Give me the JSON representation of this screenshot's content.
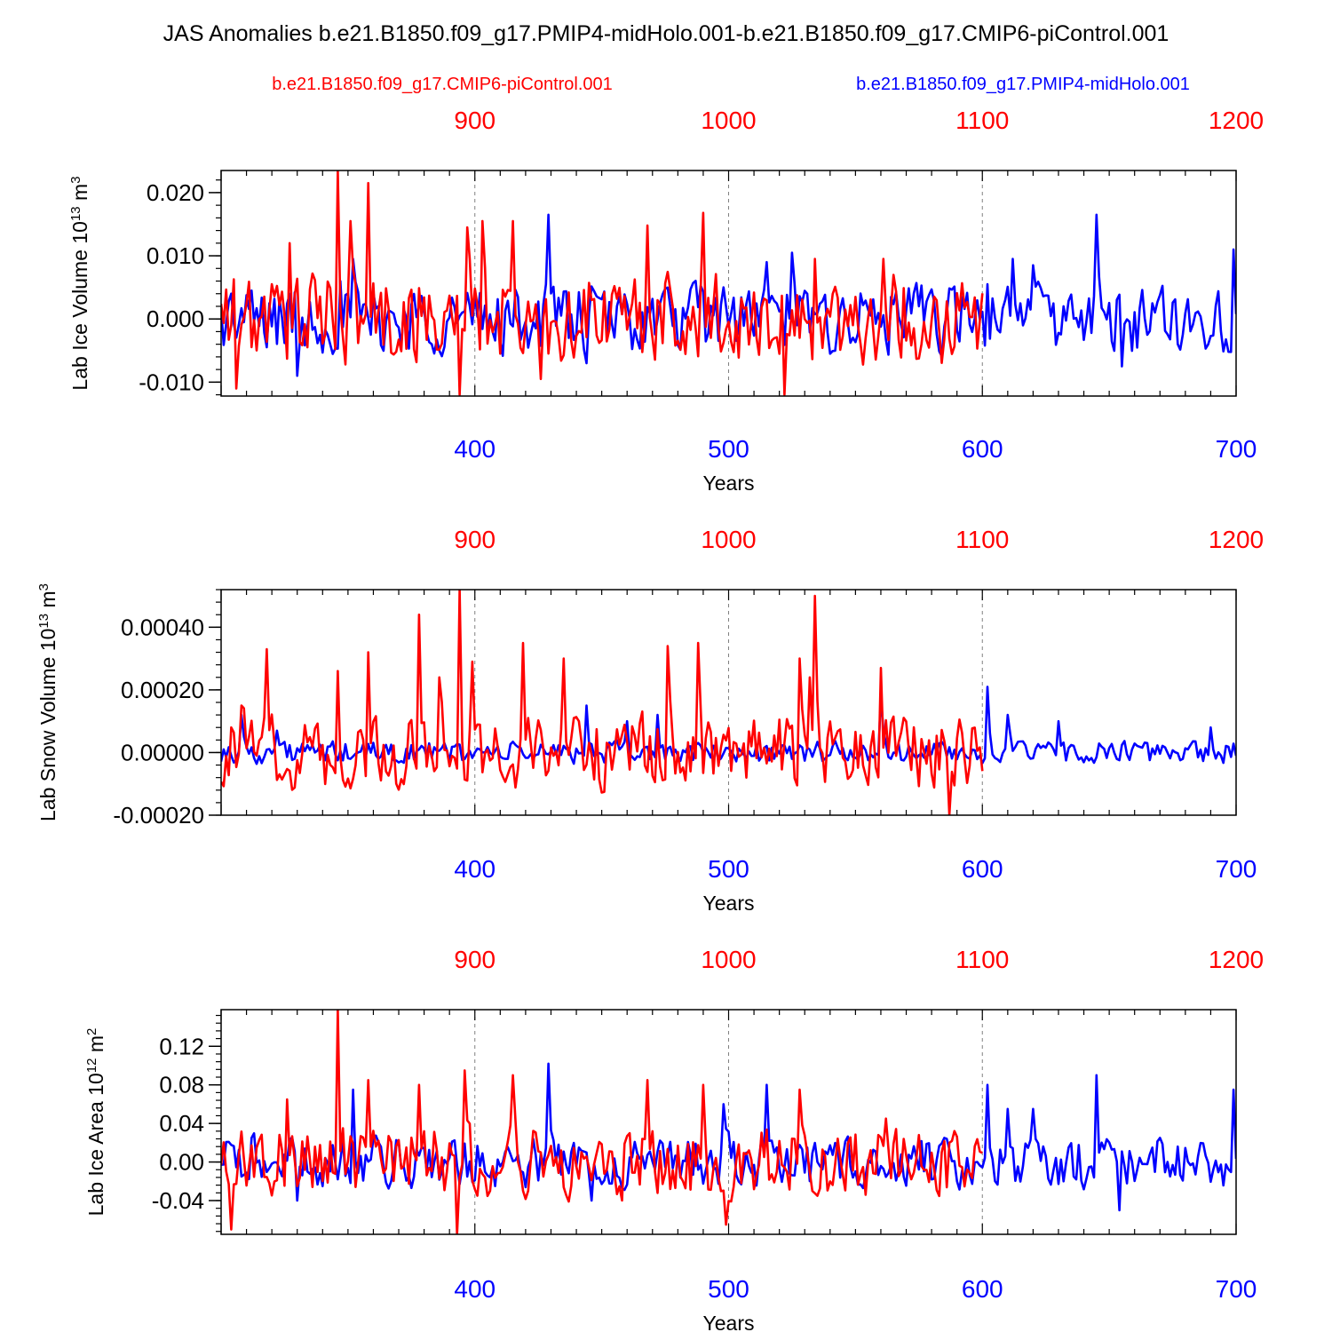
{
  "title": "JAS Anomalies b.e21.B1850.f09_g17.PMIP4-midHolo.001-b.e21.B1850.f09_g17.CMIP6-piControl.001",
  "legend": {
    "left": "b.e21.B1850.f09_g17.CMIP6-piControl.001",
    "right": "b.e21.B1850.f09_g17.PMIP4-midHolo.001"
  },
  "colors": {
    "control": "#ff0000",
    "midholo": "#0000ff",
    "axis": "#000000",
    "grid": "#808080"
  },
  "chart_data": [
    {
      "type": "line",
      "ylabel_main": "Lab Ice Volume 10",
      "ylabel_exp": "13",
      "ylabel_unit": " m",
      "ylabel_unit_exp": "3",
      "xlabel": "Years",
      "bottom_xlim": [
        300,
        700
      ],
      "bottom_ticks": [
        400,
        500,
        600,
        700
      ],
      "top_ticks": [
        900,
        1000,
        1100,
        1200
      ],
      "ylim": [
        -0.0122,
        0.0235
      ],
      "yticks": [
        -0.01,
        0.0,
        0.01,
        0.02
      ],
      "ytick_labels": [
        "-0.010",
        "0.000",
        "0.010",
        "0.020"
      ],
      "yminor_step": 0.002,
      "series": [
        {
          "name": "b.e21.B1850.f09_g17.PMIP4-midHolo.001",
          "axis": "bottom",
          "x_start": 300,
          "amp": 0.0042,
          "spikes": [
            [
              330,
              -0.009
            ],
            [
              347,
              0.006
            ],
            [
              352,
              0.0095
            ],
            [
              429,
              0.0165
            ],
            [
              444,
              -0.007
            ],
            [
              498,
              0.005
            ],
            [
              515,
              0.009
            ],
            [
              525,
              0.0105
            ],
            [
              602,
              0.0055
            ],
            [
              612,
              0.0095
            ],
            [
              620,
              0.0085
            ],
            [
              645,
              0.0165
            ],
            [
              655,
              -0.0075
            ],
            [
              699,
              0.011
            ]
          ]
        },
        {
          "name": "b.e21.B1850.f09_g17.CMIP6-piControl.001",
          "axis": "top",
          "x_start": 800,
          "x_end": 1100,
          "amp": 0.0055,
          "spikes": [
            [
              806,
              -0.011
            ],
            [
              827,
              0.012
            ],
            [
              846,
              0.0235
            ],
            [
              851,
              0.0155
            ],
            [
              858,
              0.0215
            ],
            [
              894,
              -0.012
            ],
            [
              897,
              0.0145
            ],
            [
              903,
              0.0155
            ],
            [
              915,
              0.0155
            ],
            [
              926,
              -0.0095
            ],
            [
              968,
              0.0148
            ],
            [
              990,
              0.0168
            ],
            [
              1022,
              -0.012
            ],
            [
              1034,
              0.0095
            ],
            [
              1061,
              0.0095
            ]
          ]
        }
      ]
    },
    {
      "type": "line",
      "ylabel_main": "Lab Snow Volume 10",
      "ylabel_exp": "13",
      "ylabel_unit": " m",
      "ylabel_unit_exp": "3",
      "xlabel": "Years",
      "bottom_xlim": [
        300,
        700
      ],
      "bottom_ticks": [
        400,
        500,
        600,
        700
      ],
      "top_ticks": [
        900,
        1000,
        1100,
        1200
      ],
      "ylim": [
        -0.0002,
        0.00052
      ],
      "yticks": [
        -0.0002,
        0.0,
        0.0002,
        0.0004
      ],
      "ytick_labels": [
        "-0.00020",
        "0.00000",
        "0.00020",
        "0.00040"
      ],
      "yminor_step": 4e-05,
      "series": [
        {
          "name": "b.e21.B1850.f09_g17.PMIP4-midHolo.001",
          "axis": "bottom",
          "x_start": 300,
          "amp": 3e-05,
          "spikes": [
            [
              308,
              0.00012
            ],
            [
              322,
              7e-05
            ],
            [
              444,
              0.00015
            ],
            [
              460,
              0.0001
            ],
            [
              472,
              0.00012
            ],
            [
              560,
              0.00018
            ],
            [
              602,
              0.00021
            ],
            [
              610,
              0.00012
            ],
            [
              630,
              0.0001
            ],
            [
              690,
              8e-05
            ]
          ]
        },
        {
          "name": "b.e21.B1850.f09_g17.CMIP6-piControl.001",
          "axis": "top",
          "x_start": 800,
          "x_end": 1100,
          "amp": 9e-05,
          "spikes": [
            [
              808,
              0.00015
            ],
            [
              818,
              0.00033
            ],
            [
              846,
              0.00026
            ],
            [
              858,
              0.00032
            ],
            [
              878,
              0.00044
            ],
            [
              886,
              0.00024
            ],
            [
              894,
              0.00052
            ],
            [
              899,
              0.00029
            ],
            [
              919,
              0.00035
            ],
            [
              935,
              0.0003
            ],
            [
              976,
              0.00034
            ],
            [
              988,
              0.00035
            ],
            [
              1028,
              0.0003
            ],
            [
              1032,
              0.00024
            ],
            [
              1034,
              0.0005
            ],
            [
              1060,
              0.00027
            ],
            [
              1087,
              -0.0002
            ]
          ]
        }
      ]
    },
    {
      "type": "line",
      "ylabel_main": "Lab Ice Area 10",
      "ylabel_exp": "12",
      "ylabel_unit": " m",
      "ylabel_unit_exp": "2",
      "xlabel": "Years",
      "bottom_xlim": [
        300,
        700
      ],
      "bottom_ticks": [
        400,
        500,
        600,
        700
      ],
      "top_ticks": [
        900,
        1000,
        1100,
        1200
      ],
      "ylim": [
        -0.075,
        0.158
      ],
      "yticks": [
        -0.04,
        0.0,
        0.04,
        0.08,
        0.12
      ],
      "ytick_labels": [
        "-0.04",
        "0.00",
        "0.04",
        "0.08",
        "0.12"
      ],
      "yminor_step": 0.008,
      "series": [
        {
          "name": "b.e21.B1850.f09_g17.PMIP4-midHolo.001",
          "axis": "bottom",
          "x_start": 300,
          "amp": 0.02,
          "spikes": [
            [
              312,
              0.025
            ],
            [
              330,
              -0.04
            ],
            [
              352,
              0.075
            ],
            [
              429,
              0.102
            ],
            [
              446,
              -0.04
            ],
            [
              498,
              0.06
            ],
            [
              515,
              0.08
            ],
            [
              602,
              0.08
            ],
            [
              610,
              0.055
            ],
            [
              620,
              0.055
            ],
            [
              645,
              0.09
            ],
            [
              654,
              -0.05
            ],
            [
              699,
              0.075
            ]
          ]
        },
        {
          "name": "b.e21.B1850.f09_g17.CMIP6-piControl.001",
          "axis": "top",
          "x_start": 800,
          "x_end": 1100,
          "amp": 0.028,
          "spikes": [
            [
              804,
              -0.07
            ],
            [
              826,
              0.065
            ],
            [
              846,
              0.158
            ],
            [
              858,
              0.085
            ],
            [
              878,
              0.08
            ],
            [
              893,
              -0.075
            ],
            [
              896,
              0.095
            ],
            [
              915,
              0.09
            ],
            [
              968,
              0.085
            ],
            [
              990,
              0.08
            ],
            [
              999,
              -0.065
            ],
            [
              1028,
              0.075
            ],
            [
              1062,
              0.045
            ]
          ]
        }
      ]
    }
  ]
}
